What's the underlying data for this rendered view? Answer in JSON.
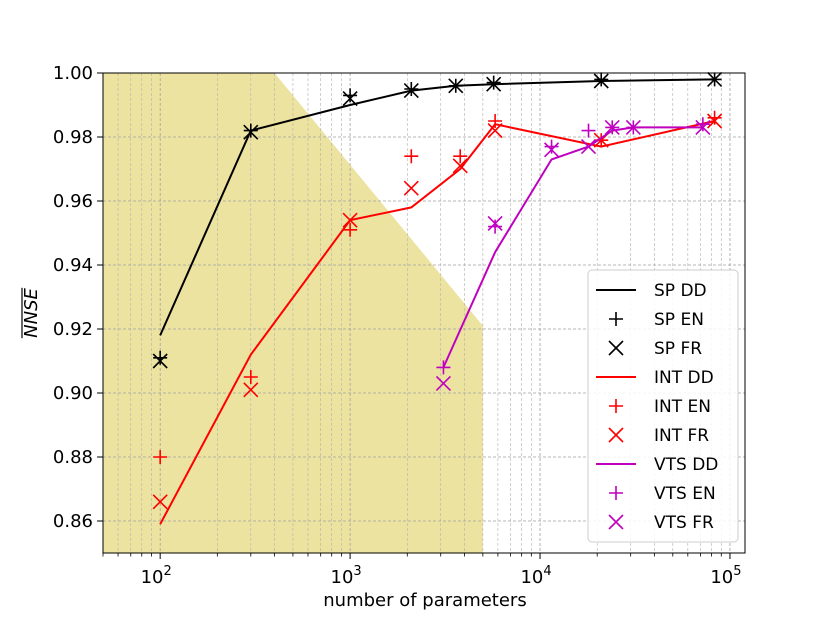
{
  "chart_data": {
    "type": "line",
    "xscale": "log",
    "xlabel": "number of parameters",
    "ylabel": "NNSE",
    "xlim": [
      50,
      120000
    ],
    "ylim": [
      0.85,
      1.0
    ],
    "x_ticks": [
      {
        "value": 100,
        "base": "10",
        "exp": "2"
      },
      {
        "value": 1000,
        "base": "10",
        "exp": "3"
      },
      {
        "value": 10000,
        "base": "10",
        "exp": "4"
      },
      {
        "value": 100000,
        "base": "10",
        "exp": "5"
      }
    ],
    "y_ticks": [
      {
        "value": 0.86,
        "label": "0.86"
      },
      {
        "value": 0.88,
        "label": "0.88"
      },
      {
        "value": 0.9,
        "label": "0.90"
      },
      {
        "value": 0.92,
        "label": "0.92"
      },
      {
        "value": 0.94,
        "label": "0.94"
      },
      {
        "value": 0.96,
        "label": "0.96"
      },
      {
        "value": 0.98,
        "label": "0.98"
      },
      {
        "value": 1.0,
        "label": "1.00"
      }
    ],
    "shaded_region": {
      "color": "#ede3a1",
      "vertices": [
        [
          50,
          1.0
        ],
        [
          400,
          1.0
        ],
        [
          5000,
          0.921
        ],
        [
          5000,
          0.85
        ],
        [
          50,
          0.85
        ]
      ]
    },
    "grid": true,
    "legend_position": "lower-right",
    "series": [
      {
        "name": "SP DD",
        "kind": "line",
        "color": "#000000",
        "x": [
          100,
          300,
          1000,
          2100,
          3600,
          5700,
          21000,
          83000
        ],
        "y": [
          0.918,
          0.982,
          0.99,
          0.9945,
          0.996,
          0.9965,
          0.9975,
          0.998
        ]
      },
      {
        "name": "SP EN",
        "kind": "plus",
        "color": "#000000",
        "x": [
          100,
          300,
          1000,
          2100,
          3600,
          5700,
          21000,
          83000
        ],
        "y": [
          0.911,
          0.982,
          0.993,
          0.995,
          0.996,
          0.997,
          0.998,
          0.998
        ]
      },
      {
        "name": "SP FR",
        "kind": "cross",
        "color": "#000000",
        "x": [
          100,
          300,
          1000,
          2100,
          3600,
          5700,
          21000,
          83000
        ],
        "y": [
          0.91,
          0.9815,
          0.992,
          0.9945,
          0.996,
          0.9965,
          0.9975,
          0.998
        ]
      },
      {
        "name": "INT DD",
        "kind": "line",
        "color": "#ff0000",
        "x": [
          100,
          300,
          1000,
          2100,
          3800,
          5800,
          21000,
          83000
        ],
        "y": [
          0.859,
          0.912,
          0.954,
          0.958,
          0.97,
          0.984,
          0.977,
          0.985
        ]
      },
      {
        "name": "INT EN",
        "kind": "plus",
        "color": "#ff0000",
        "x": [
          100,
          300,
          1000,
          2100,
          3800,
          5800,
          21000,
          83000
        ],
        "y": [
          0.88,
          0.905,
          0.951,
          0.974,
          0.974,
          0.985,
          0.979,
          0.986
        ]
      },
      {
        "name": "INT FR",
        "kind": "cross",
        "color": "#ff0000",
        "x": [
          100,
          300,
          1000,
          2100,
          3800,
          5800,
          21000,
          83000
        ],
        "y": [
          0.866,
          0.901,
          0.954,
          0.964,
          0.971,
          0.982,
          0.979,
          0.985
        ]
      },
      {
        "name": "VTS DD",
        "kind": "line",
        "color": "#bf00bf",
        "x": [
          3100,
          5800,
          11500,
          18000,
          24000,
          31000,
          72000
        ],
        "y": [
          0.908,
          0.944,
          0.973,
          0.977,
          0.982,
          0.983,
          0.983
        ]
      },
      {
        "name": "VTS EN",
        "kind": "plus",
        "color": "#bf00bf",
        "x": [
          3100,
          5800,
          11500,
          18000,
          24000,
          31000,
          72000
        ],
        "y": [
          0.908,
          0.952,
          0.977,
          0.982,
          0.983,
          0.983,
          0.984
        ]
      },
      {
        "name": "VTS FR",
        "kind": "cross",
        "color": "#bf00bf",
        "x": [
          3100,
          5800,
          11500,
          18000,
          24000,
          31000,
          72000
        ],
        "y": [
          0.903,
          0.953,
          0.976,
          0.977,
          0.983,
          0.983,
          0.983
        ]
      }
    ]
  }
}
